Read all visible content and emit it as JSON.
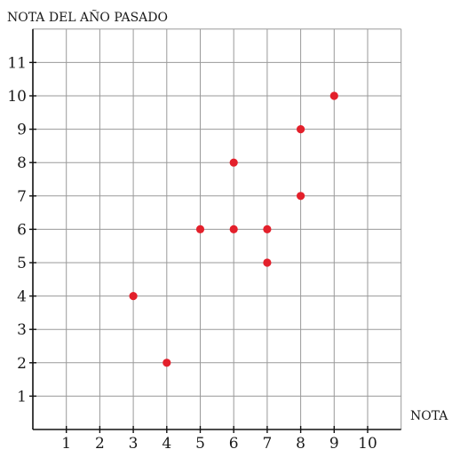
{
  "chart_data": {
    "type": "scatter",
    "xlabel": "NOTA",
    "ylabel": "NOTA DEL AÑO PASADO",
    "x_ticks": [
      1,
      2,
      3,
      4,
      5,
      6,
      7,
      8,
      9,
      10
    ],
    "y_ticks": [
      1,
      2,
      3,
      4,
      5,
      6,
      7,
      8,
      9,
      10,
      11
    ],
    "xlim": [
      0,
      11
    ],
    "ylim": [
      0,
      12
    ],
    "grid": true,
    "point_color": "#e3202b",
    "points": [
      {
        "x": 3,
        "y": 4
      },
      {
        "x": 4,
        "y": 2
      },
      {
        "x": 5,
        "y": 6
      },
      {
        "x": 6,
        "y": 6
      },
      {
        "x": 6,
        "y": 8
      },
      {
        "x": 7,
        "y": 6
      },
      {
        "x": 7,
        "y": 5
      },
      {
        "x": 8,
        "y": 9
      },
      {
        "x": 8,
        "y": 7
      },
      {
        "x": 9,
        "y": 10
      }
    ]
  }
}
